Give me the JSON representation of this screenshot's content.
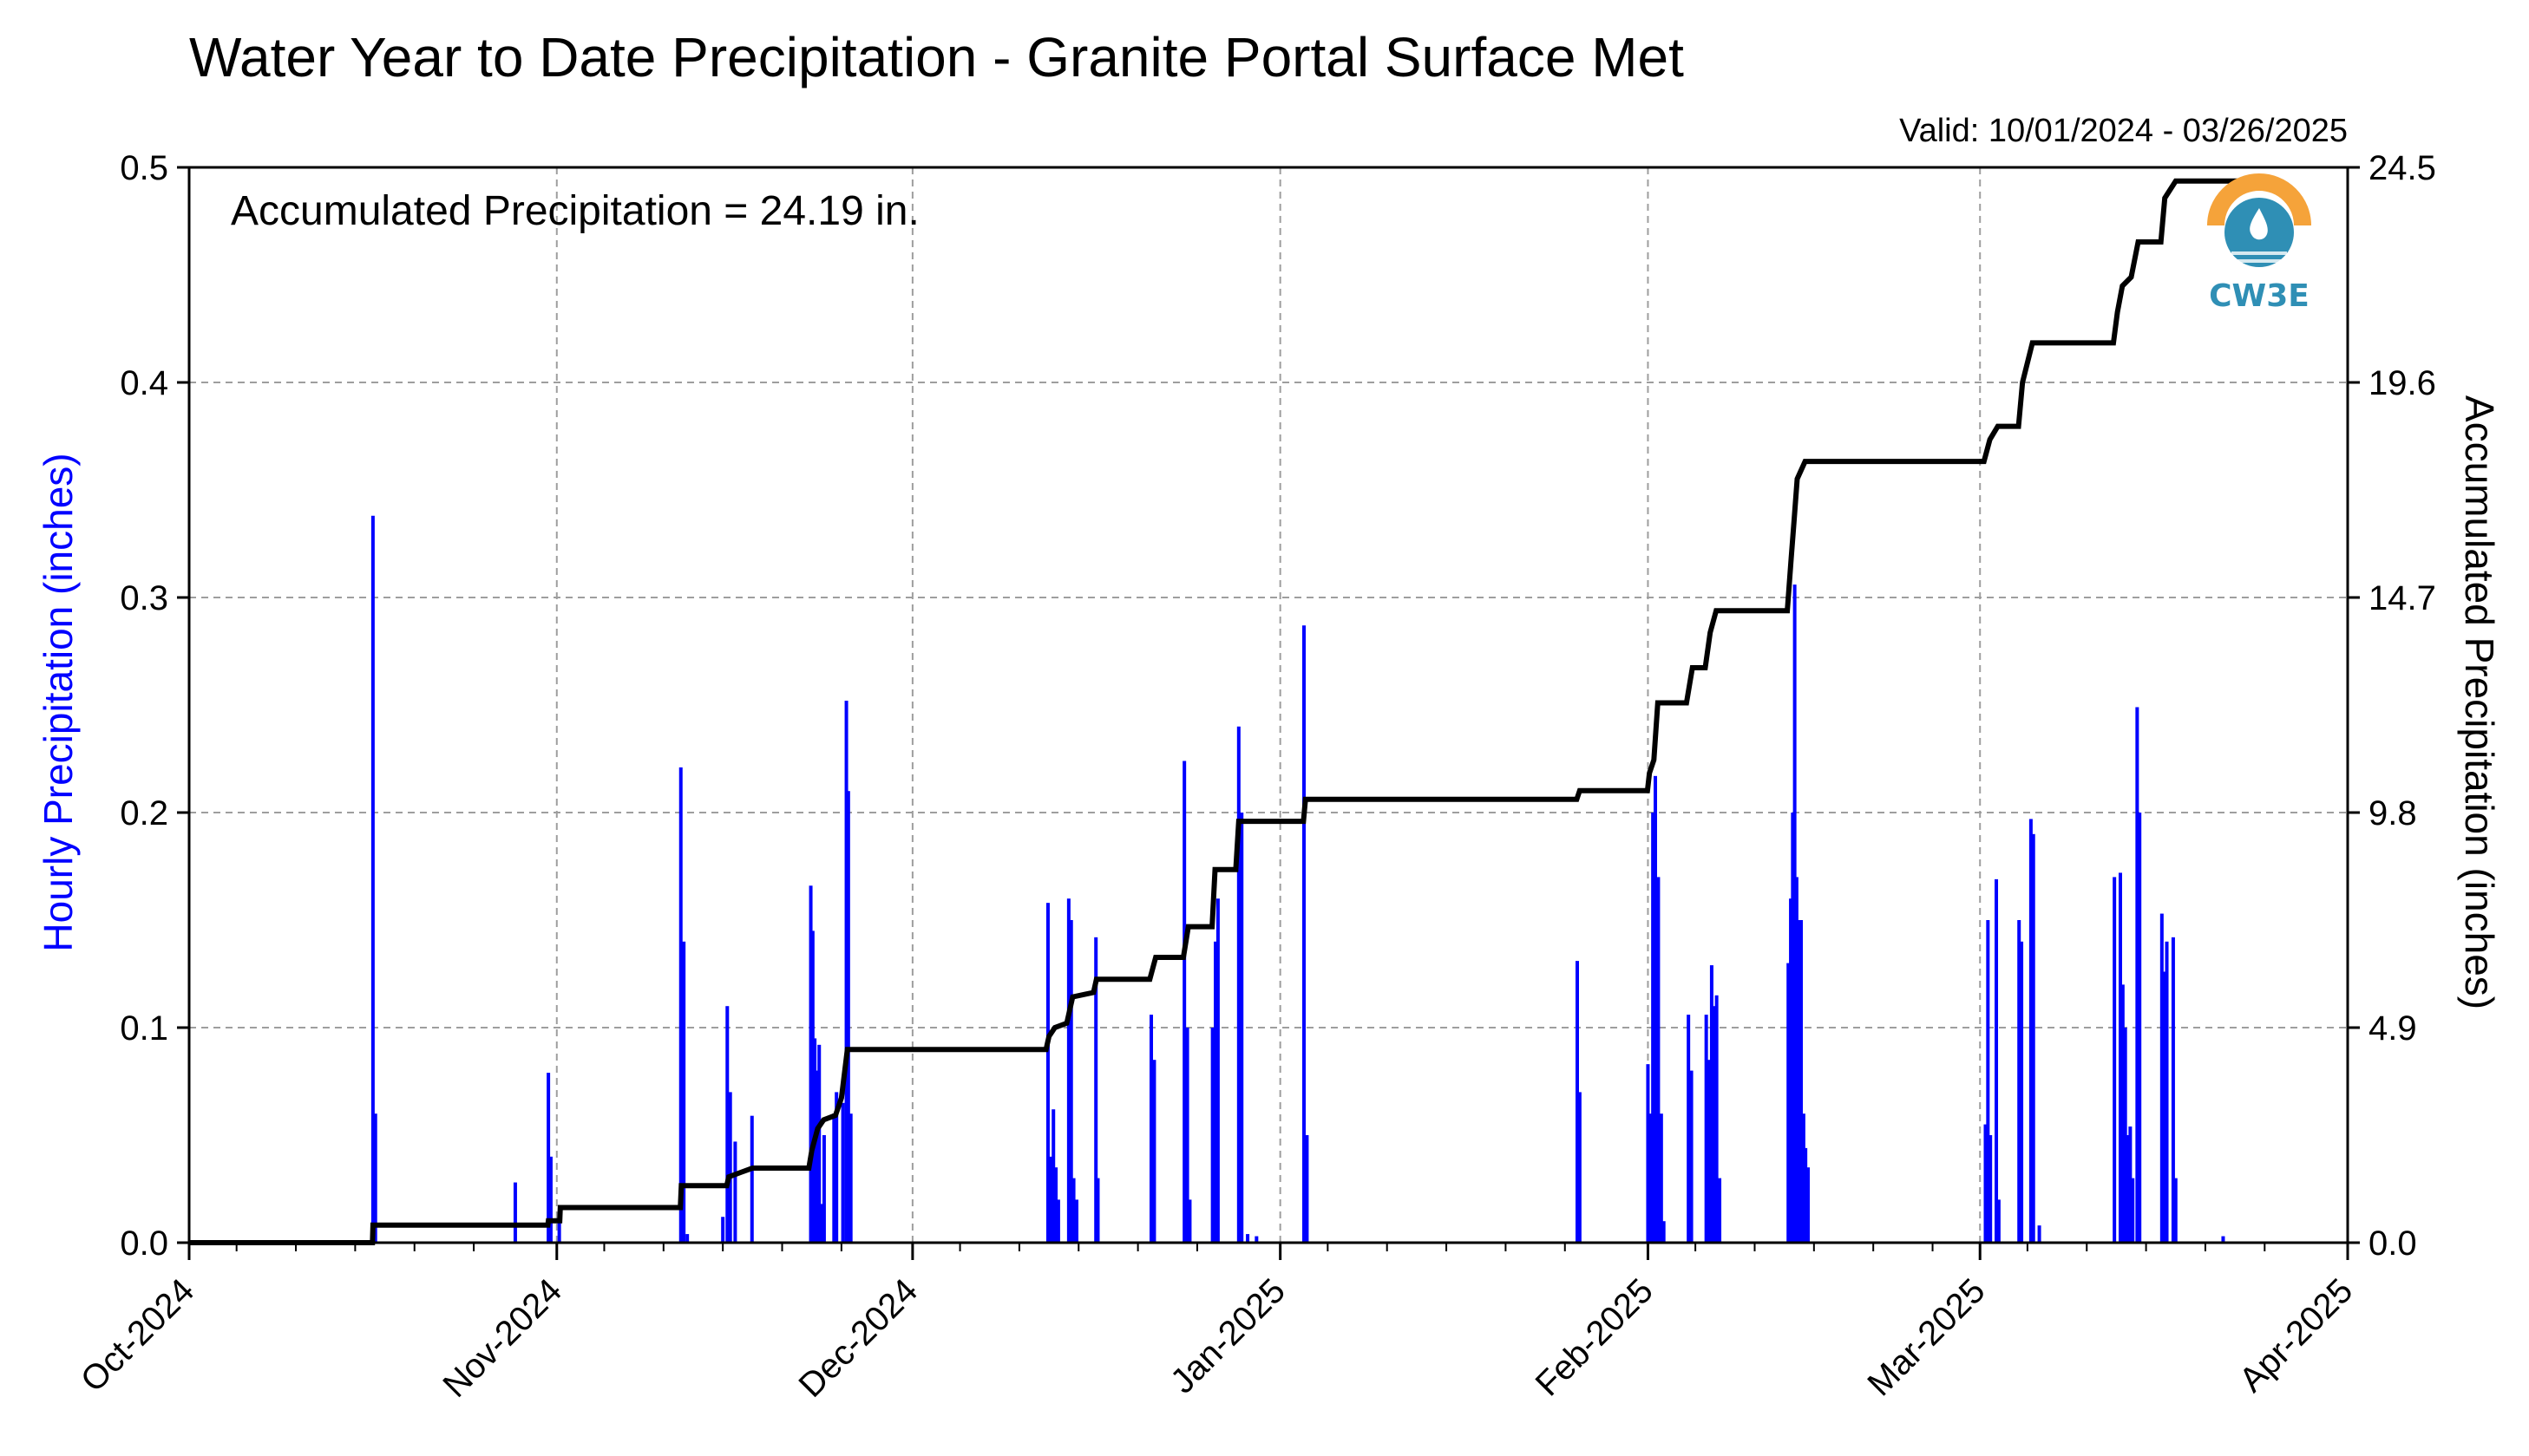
{
  "chart_data": {
    "type": "bar+line",
    "title": "Water Year to Date Precipitation - Granite Portal Surface Met",
    "subtitle": "Valid: 10/01/2024 - 03/26/2025",
    "annotation": "Accumulated Precipitation = 24.19 in.",
    "left_axis": {
      "label": "Hourly Precipitation (inches)",
      "color": "#0000ff",
      "ylim": [
        0.0,
        0.5
      ],
      "ticks": [
        0.0,
        0.1,
        0.2,
        0.3,
        0.4,
        0.5
      ],
      "tick_labels": [
        "0.0",
        "0.1",
        "0.2",
        "0.3",
        "0.4",
        "0.5"
      ]
    },
    "right_axis": {
      "label": "Accumulated Precipitation (inches)",
      "color": "#000000",
      "ylim": [
        0.0,
        24.5
      ],
      "ticks": [
        0.0,
        4.9,
        9.8,
        14.7,
        19.6,
        24.5
      ],
      "tick_labels": [
        "0.0",
        "4.9",
        "9.8",
        "14.7",
        "19.6",
        "24.5"
      ]
    },
    "x_axis": {
      "xlim": [
        "2024-10-01",
        "2025-04-01"
      ],
      "ticks": [
        "2024-10-01",
        "2024-11-01",
        "2024-12-01",
        "2025-01-01",
        "2025-02-01",
        "2025-03-01",
        "2025-04-01"
      ],
      "tick_labels": [
        "Oct-2024",
        "Nov-2024",
        "Dec-2024",
        "Jan-2025",
        "Feb-2025",
        "Mar-2025",
        "Apr-2025"
      ]
    },
    "grid": true,
    "series": [
      {
        "name": "Hourly Precipitation (inches)",
        "kind": "bar",
        "color": "#0000ff",
        "points": [
          {
            "x": "2024-10-16 12:00",
            "y": 0.338
          },
          {
            "x": "2024-10-16 17:00",
            "y": 0.06
          },
          {
            "x": "2024-10-28 12:00",
            "y": 0.028
          },
          {
            "x": "2024-10-31 07:00",
            "y": 0.079
          },
          {
            "x": "2024-10-31 12:00",
            "y": 0.04
          },
          {
            "x": "2024-11-01 05:00",
            "y": 0.014
          },
          {
            "x": "2024-11-11 11:00",
            "y": 0.221
          },
          {
            "x": "2024-11-11 17:00",
            "y": 0.14
          },
          {
            "x": "2024-11-12 00:00",
            "y": 0.004
          },
          {
            "x": "2024-11-15 00:00",
            "y": 0.012
          },
          {
            "x": "2024-11-15 09:00",
            "y": 0.11
          },
          {
            "x": "2024-11-15 15:00",
            "y": 0.07
          },
          {
            "x": "2024-11-16 01:00",
            "y": 0.047
          },
          {
            "x": "2024-11-17 11:00",
            "y": 0.059
          },
          {
            "x": "2024-11-22 10:00",
            "y": 0.166
          },
          {
            "x": "2024-11-22 14:00",
            "y": 0.145
          },
          {
            "x": "2024-11-22 18:00",
            "y": 0.095
          },
          {
            "x": "2024-11-22 22:00",
            "y": 0.08
          },
          {
            "x": "2024-11-23 03:00",
            "y": 0.092
          },
          {
            "x": "2024-11-23 08:00",
            "y": 0.018
          },
          {
            "x": "2024-11-23 13:00",
            "y": 0.05
          },
          {
            "x": "2024-11-24 09:00",
            "y": 0.06
          },
          {
            "x": "2024-11-24 14:00",
            "y": 0.07
          },
          {
            "x": "2024-11-25 03:00",
            "y": 0.065
          },
          {
            "x": "2024-11-25 10:00",
            "y": 0.252
          },
          {
            "x": "2024-11-25 14:00",
            "y": 0.21
          },
          {
            "x": "2024-11-25 19:00",
            "y": 0.06
          },
          {
            "x": "2024-12-12 10:00",
            "y": 0.158
          },
          {
            "x": "2024-12-12 16:00",
            "y": 0.04
          },
          {
            "x": "2024-12-12 21:00",
            "y": 0.062
          },
          {
            "x": "2024-12-13 02:00",
            "y": 0.035
          },
          {
            "x": "2024-12-13 07:00",
            "y": 0.02
          },
          {
            "x": "2024-12-14 04:00",
            "y": 0.16
          },
          {
            "x": "2024-12-14 09:00",
            "y": 0.15
          },
          {
            "x": "2024-12-14 14:00",
            "y": 0.03
          },
          {
            "x": "2024-12-14 20:00",
            "y": 0.02
          },
          {
            "x": "2024-12-16 11:00",
            "y": 0.142
          },
          {
            "x": "2024-12-16 15:00",
            "y": 0.03
          },
          {
            "x": "2024-12-21 03:00",
            "y": 0.106
          },
          {
            "x": "2024-12-21 09:00",
            "y": 0.085
          },
          {
            "x": "2024-12-23 22:00",
            "y": 0.224
          },
          {
            "x": "2024-12-24 04:00",
            "y": 0.1
          },
          {
            "x": "2024-12-24 09:00",
            "y": 0.02
          },
          {
            "x": "2024-12-26 07:00",
            "y": 0.1
          },
          {
            "x": "2024-12-26 13:00",
            "y": 0.14
          },
          {
            "x": "2024-12-26 18:00",
            "y": 0.16
          },
          {
            "x": "2024-12-28 12:00",
            "y": 0.24
          },
          {
            "x": "2024-12-28 18:00",
            "y": 0.2
          },
          {
            "x": "2024-12-29 06:00",
            "y": 0.004
          },
          {
            "x": "2024-12-30 00:00",
            "y": 0.003
          },
          {
            "x": "2025-01-03 00:00",
            "y": 0.287
          },
          {
            "x": "2025-01-03 06:00",
            "y": 0.05
          },
          {
            "x": "2025-01-26 01:00",
            "y": 0.131
          },
          {
            "x": "2025-01-26 06:00",
            "y": 0.07
          },
          {
            "x": "2025-02-01 00:00",
            "y": 0.083
          },
          {
            "x": "2025-02-01 05:00",
            "y": 0.06
          },
          {
            "x": "2025-02-01 10:00",
            "y": 0.2
          },
          {
            "x": "2025-02-01 15:00",
            "y": 0.217
          },
          {
            "x": "2025-02-01 21:00",
            "y": 0.17
          },
          {
            "x": "2025-02-02 03:00",
            "y": 0.06
          },
          {
            "x": "2025-02-02 08:00",
            "y": 0.01
          },
          {
            "x": "2025-02-04 10:00",
            "y": 0.106
          },
          {
            "x": "2025-02-04 16:00",
            "y": 0.08
          },
          {
            "x": "2025-02-05 22:00",
            "y": 0.106
          },
          {
            "x": "2025-02-06 03:00",
            "y": 0.085
          },
          {
            "x": "2025-02-06 09:00",
            "y": 0.129
          },
          {
            "x": "2025-02-06 14:00",
            "y": 0.11
          },
          {
            "x": "2025-02-06 19:00",
            "y": 0.115
          },
          {
            "x": "2025-02-07 01:00",
            "y": 0.03
          },
          {
            "x": "2025-02-12 20:00",
            "y": 0.13
          },
          {
            "x": "2025-02-13 01:00",
            "y": 0.16
          },
          {
            "x": "2025-02-13 05:00",
            "y": 0.2
          },
          {
            "x": "2025-02-13 09:00",
            "y": 0.306
          },
          {
            "x": "2025-02-13 13:00",
            "y": 0.17
          },
          {
            "x": "2025-02-13 17:00",
            "y": 0.15
          },
          {
            "x": "2025-02-13 22:00",
            "y": 0.15
          },
          {
            "x": "2025-02-14 03:00",
            "y": 0.06
          },
          {
            "x": "2025-02-14 07:00",
            "y": 0.044
          },
          {
            "x": "2025-02-14 12:00",
            "y": 0.035
          },
          {
            "x": "2025-03-01 11:00",
            "y": 0.055
          },
          {
            "x": "2025-03-01 16:00",
            "y": 0.15
          },
          {
            "x": "2025-03-01 21:00",
            "y": 0.05
          },
          {
            "x": "2025-03-02 09:00",
            "y": 0.169
          },
          {
            "x": "2025-03-02 14:00",
            "y": 0.02
          },
          {
            "x": "2025-03-04 07:00",
            "y": 0.15
          },
          {
            "x": "2025-03-04 12:00",
            "y": 0.14
          },
          {
            "x": "2025-03-05 07:00",
            "y": 0.197
          },
          {
            "x": "2025-03-05 12:00",
            "y": 0.19
          },
          {
            "x": "2025-03-06 00:00",
            "y": 0.008
          },
          {
            "x": "2025-03-12 08:00",
            "y": 0.17
          },
          {
            "x": "2025-03-12 20:00",
            "y": 0.172
          },
          {
            "x": "2025-03-13 01:00",
            "y": 0.12
          },
          {
            "x": "2025-03-13 06:00",
            "y": 0.1
          },
          {
            "x": "2025-03-13 11:00",
            "y": 0.05
          },
          {
            "x": "2025-03-13 16:00",
            "y": 0.054
          },
          {
            "x": "2025-03-13 21:00",
            "y": 0.03
          },
          {
            "x": "2025-03-14 06:00",
            "y": 0.249
          },
          {
            "x": "2025-03-14 11:00",
            "y": 0.2
          },
          {
            "x": "2025-03-16 08:00",
            "y": 0.153
          },
          {
            "x": "2025-03-16 13:00",
            "y": 0.126
          },
          {
            "x": "2025-03-16 18:00",
            "y": 0.14
          },
          {
            "x": "2025-03-17 07:00",
            "y": 0.142
          },
          {
            "x": "2025-03-17 12:00",
            "y": 0.03
          },
          {
            "x": "2025-03-21 12:00",
            "y": 0.003
          }
        ]
      },
      {
        "name": "Accumulated Precipitation (inches)",
        "kind": "step-line",
        "color": "#000000",
        "points": [
          {
            "x": "2024-10-01",
            "y": 0.0
          },
          {
            "x": "2024-10-16 11:00",
            "y": 0.0
          },
          {
            "x": "2024-10-16 12:00",
            "y": 0.4
          },
          {
            "x": "2024-10-31 06:00",
            "y": 0.4
          },
          {
            "x": "2024-10-31 07:00",
            "y": 0.5
          },
          {
            "x": "2024-11-01 06:00",
            "y": 0.5
          },
          {
            "x": "2024-11-01 07:00",
            "y": 0.8
          },
          {
            "x": "2024-11-11 10:00",
            "y": 0.8
          },
          {
            "x": "2024-11-11 12:00",
            "y": 1.3
          },
          {
            "x": "2024-11-15 08:00",
            "y": 1.3
          },
          {
            "x": "2024-11-15 12:00",
            "y": 1.5
          },
          {
            "x": "2024-11-16 12:00",
            "y": 1.6
          },
          {
            "x": "2024-11-17 12:00",
            "y": 1.7
          },
          {
            "x": "2024-11-22 06:00",
            "y": 1.7
          },
          {
            "x": "2024-11-22 12:00",
            "y": 2.1
          },
          {
            "x": "2024-11-23 00:00",
            "y": 2.6
          },
          {
            "x": "2024-11-23 12:00",
            "y": 2.8
          },
          {
            "x": "2024-11-24 12:00",
            "y": 2.9
          },
          {
            "x": "2024-11-25 00:00",
            "y": 3.3
          },
          {
            "x": "2024-11-25 12:00",
            "y": 4.4
          },
          {
            "x": "2024-12-12 06:00",
            "y": 4.4
          },
          {
            "x": "2024-12-12 12:00",
            "y": 4.7
          },
          {
            "x": "2024-12-13 00:00",
            "y": 4.9
          },
          {
            "x": "2024-12-14 00:00",
            "y": 5.0
          },
          {
            "x": "2024-12-14 12:00",
            "y": 5.6
          },
          {
            "x": "2024-12-16 06:00",
            "y": 5.7
          },
          {
            "x": "2024-12-16 12:00",
            "y": 6.0
          },
          {
            "x": "2024-12-21 00:00",
            "y": 6.0
          },
          {
            "x": "2024-12-21 12:00",
            "y": 6.5
          },
          {
            "x": "2024-12-23 20:00",
            "y": 6.5
          },
          {
            "x": "2024-12-24 06:00",
            "y": 7.2
          },
          {
            "x": "2024-12-26 06:00",
            "y": 7.2
          },
          {
            "x": "2024-12-26 12:00",
            "y": 8.5
          },
          {
            "x": "2024-12-28 06:00",
            "y": 8.5
          },
          {
            "x": "2024-12-28 12:00",
            "y": 9.6
          },
          {
            "x": "2025-01-02 23:00",
            "y": 9.6
          },
          {
            "x": "2025-01-03 03:00",
            "y": 10.1
          },
          {
            "x": "2025-01-26 00:00",
            "y": 10.1
          },
          {
            "x": "2025-01-26 06:00",
            "y": 10.3
          },
          {
            "x": "2025-01-31 23:00",
            "y": 10.3
          },
          {
            "x": "2025-02-01 03:00",
            "y": 10.7
          },
          {
            "x": "2025-02-01 12:00",
            "y": 11.0
          },
          {
            "x": "2025-02-01 20:00",
            "y": 12.3
          },
          {
            "x": "2025-02-04 06:00",
            "y": 12.3
          },
          {
            "x": "2025-02-04 18:00",
            "y": 13.1
          },
          {
            "x": "2025-02-05 20:00",
            "y": 13.1
          },
          {
            "x": "2025-02-06 06:00",
            "y": 13.9
          },
          {
            "x": "2025-02-06 18:00",
            "y": 14.4
          },
          {
            "x": "2025-02-12 18:00",
            "y": 14.4
          },
          {
            "x": "2025-02-13 02:00",
            "y": 15.6
          },
          {
            "x": "2025-02-13 08:00",
            "y": 16.5
          },
          {
            "x": "2025-02-13 14:00",
            "y": 17.4
          },
          {
            "x": "2025-02-14 06:00",
            "y": 17.8
          },
          {
            "x": "2025-03-01 08:00",
            "y": 17.8
          },
          {
            "x": "2025-03-01 20:00",
            "y": 18.3
          },
          {
            "x": "2025-03-02 12:00",
            "y": 18.6
          },
          {
            "x": "2025-03-04 06:00",
            "y": 18.6
          },
          {
            "x": "2025-03-04 14:00",
            "y": 19.6
          },
          {
            "x": "2025-03-05 10:00",
            "y": 20.5
          },
          {
            "x": "2025-03-12 06:00",
            "y": 20.5
          },
          {
            "x": "2025-03-12 14:00",
            "y": 21.2
          },
          {
            "x": "2025-03-13 00:00",
            "y": 21.8
          },
          {
            "x": "2025-03-13 18:00",
            "y": 22.0
          },
          {
            "x": "2025-03-14 08:00",
            "y": 22.8
          },
          {
            "x": "2025-03-16 06:00",
            "y": 22.8
          },
          {
            "x": "2025-03-16 14:00",
            "y": 23.8
          },
          {
            "x": "2025-03-17 12:00",
            "y": 24.19
          },
          {
            "x": "2025-03-26 00:00",
            "y": 24.19
          }
        ]
      }
    ]
  },
  "logo": {
    "text": "CW3E",
    "colors": {
      "arc": "#f5a33a",
      "body": "#2f8fb5",
      "text": "#2f8fb5"
    }
  }
}
